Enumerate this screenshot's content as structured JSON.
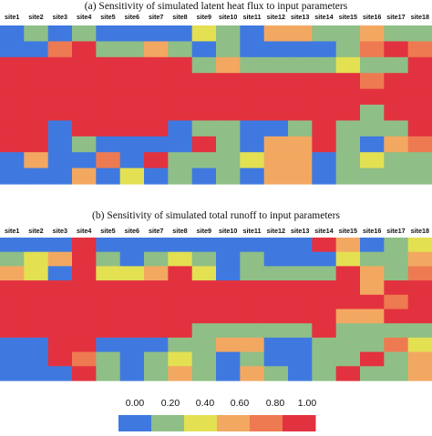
{
  "colors": {
    "scale": [
      "#3f79e0",
      "#8fbf86",
      "#e3e052",
      "#f3a861",
      "#ee7a52",
      "#e3323f"
    ]
  },
  "chart_data": [
    {
      "type": "heatmap",
      "title": "(a) Sensitivity of simulated latent heat flux to input parameters",
      "x_labels": [
        "site1",
        "site2",
        "site3",
        "site4",
        "site5",
        "site6",
        "site7",
        "site8",
        "site9",
        "site10",
        "site11",
        "site12",
        "site13",
        "site14",
        "site15",
        "site16",
        "site17",
        "site18"
      ],
      "rows": 10,
      "values": [
        [
          0.0,
          0.2,
          0.0,
          0.1,
          0.0,
          0.0,
          0.0,
          0.0,
          0.4,
          0.2,
          0.0,
          0.6,
          0.6,
          0.2,
          0.2,
          0.6,
          0.2,
          0.2
        ],
        [
          0.0,
          0.0,
          0.8,
          1.0,
          0.2,
          0.2,
          0.6,
          0.2,
          0.0,
          0.2,
          0.0,
          0.0,
          0.0,
          0.0,
          0.2,
          0.8,
          1.0,
          0.8
        ],
        [
          1.0,
          1.0,
          1.0,
          1.0,
          1.0,
          1.0,
          1.0,
          1.0,
          0.2,
          0.6,
          0.2,
          0.2,
          0.2,
          0.2,
          0.4,
          0.2,
          0.2,
          1.0
        ],
        [
          1.0,
          1.0,
          1.0,
          1.0,
          1.0,
          1.0,
          1.0,
          1.0,
          1.0,
          1.0,
          1.0,
          1.0,
          1.0,
          1.0,
          1.0,
          0.8,
          1.0,
          1.0
        ],
        [
          1.0,
          1.0,
          1.0,
          1.0,
          1.0,
          1.0,
          1.0,
          1.0,
          1.0,
          1.0,
          1.0,
          1.0,
          1.0,
          1.0,
          1.0,
          1.0,
          1.0,
          1.0
        ],
        [
          1.0,
          1.0,
          1.0,
          1.0,
          1.0,
          1.0,
          1.0,
          1.0,
          1.0,
          1.0,
          1.0,
          1.0,
          1.0,
          1.0,
          1.0,
          0.2,
          1.0,
          1.0
        ],
        [
          1.0,
          1.0,
          0.0,
          1.0,
          1.0,
          1.0,
          1.0,
          0.0,
          0.2,
          0.2,
          0.0,
          0.0,
          0.2,
          1.0,
          0.2,
          0.2,
          0.2,
          1.0
        ],
        [
          1.0,
          1.0,
          0.0,
          0.2,
          0.0,
          0.0,
          0.0,
          0.0,
          1.0,
          0.2,
          0.0,
          0.6,
          0.6,
          1.0,
          0.2,
          0.0,
          0.6,
          0.8
        ],
        [
          0.0,
          0.6,
          0.0,
          0.0,
          0.8,
          0.0,
          1.0,
          0.2,
          0.2,
          0.2,
          0.4,
          0.6,
          0.6,
          0.0,
          0.2,
          0.4,
          0.2,
          0.2
        ],
        [
          0.0,
          0.0,
          0.0,
          0.6,
          0.0,
          0.4,
          0.0,
          0.2,
          0.0,
          0.2,
          0.0,
          0.6,
          0.6,
          0.0,
          0.2,
          0.2,
          0.2,
          0.2
        ]
      ]
    },
    {
      "type": "heatmap",
      "title": "(b) Sensitivity of simulated total runoff to input parameters",
      "x_labels": [
        "site1",
        "site2",
        "site3",
        "site4",
        "site5",
        "site6",
        "site7",
        "site8",
        "site9",
        "site10",
        "site11",
        "site12",
        "site13",
        "site14",
        "site15",
        "site16",
        "site17",
        "site18"
      ],
      "rows": 10,
      "values": [
        [
          0.0,
          0.0,
          0.0,
          1.0,
          0.0,
          0.0,
          0.0,
          0.0,
          0.0,
          0.0,
          0.0,
          0.0,
          0.0,
          1.0,
          0.6,
          0.0,
          0.2,
          0.4
        ],
        [
          0.2,
          0.4,
          0.6,
          1.0,
          0.2,
          0.0,
          0.2,
          0.4,
          0.2,
          0.0,
          0.2,
          0.0,
          0.0,
          0.0,
          0.4,
          0.2,
          0.2,
          0.6
        ],
        [
          0.6,
          0.4,
          0.0,
          1.0,
          0.4,
          0.4,
          0.6,
          1.0,
          0.4,
          0.0,
          0.2,
          0.2,
          0.2,
          0.2,
          1.0,
          0.6,
          0.2,
          0.8
        ],
        [
          1.0,
          1.0,
          1.0,
          1.0,
          1.0,
          1.0,
          1.0,
          1.0,
          1.0,
          1.0,
          1.0,
          1.0,
          1.0,
          1.0,
          1.0,
          0.6,
          1.0,
          1.0
        ],
        [
          1.0,
          1.0,
          1.0,
          1.0,
          1.0,
          1.0,
          1.0,
          1.0,
          1.0,
          1.0,
          1.0,
          1.0,
          1.0,
          1.0,
          1.0,
          1.0,
          0.8,
          1.0
        ],
        [
          1.0,
          1.0,
          1.0,
          1.0,
          1.0,
          1.0,
          1.0,
          1.0,
          1.0,
          1.0,
          1.0,
          1.0,
          1.0,
          1.0,
          0.6,
          0.6,
          1.0,
          1.0
        ],
        [
          1.0,
          1.0,
          1.0,
          1.0,
          1.0,
          1.0,
          1.0,
          1.0,
          0.2,
          0.2,
          0.2,
          0.2,
          0.2,
          1.0,
          0.2,
          0.2,
          0.2,
          0.2
        ],
        [
          0.0,
          0.0,
          1.0,
          1.0,
          0.0,
          0.0,
          0.0,
          0.2,
          0.2,
          0.6,
          0.6,
          0.0,
          0.0,
          0.2,
          0.2,
          0.2,
          0.8,
          0.4
        ],
        [
          0.0,
          0.0,
          1.0,
          0.8,
          0.2,
          0.0,
          0.2,
          0.4,
          0.2,
          0.0,
          0.2,
          0.0,
          0.0,
          0.2,
          0.2,
          1.0,
          0.2,
          0.6
        ],
        [
          0.0,
          0.0,
          0.0,
          1.0,
          0.2,
          0.0,
          0.2,
          0.6,
          0.2,
          0.0,
          0.6,
          0.2,
          0.0,
          0.2,
          1.0,
          0.2,
          0.2,
          0.6
        ]
      ]
    }
  ],
  "colorbar": {
    "ticks": [
      "0.00",
      "0.20",
      "0.40",
      "0.60",
      "0.80",
      "1.00"
    ]
  }
}
